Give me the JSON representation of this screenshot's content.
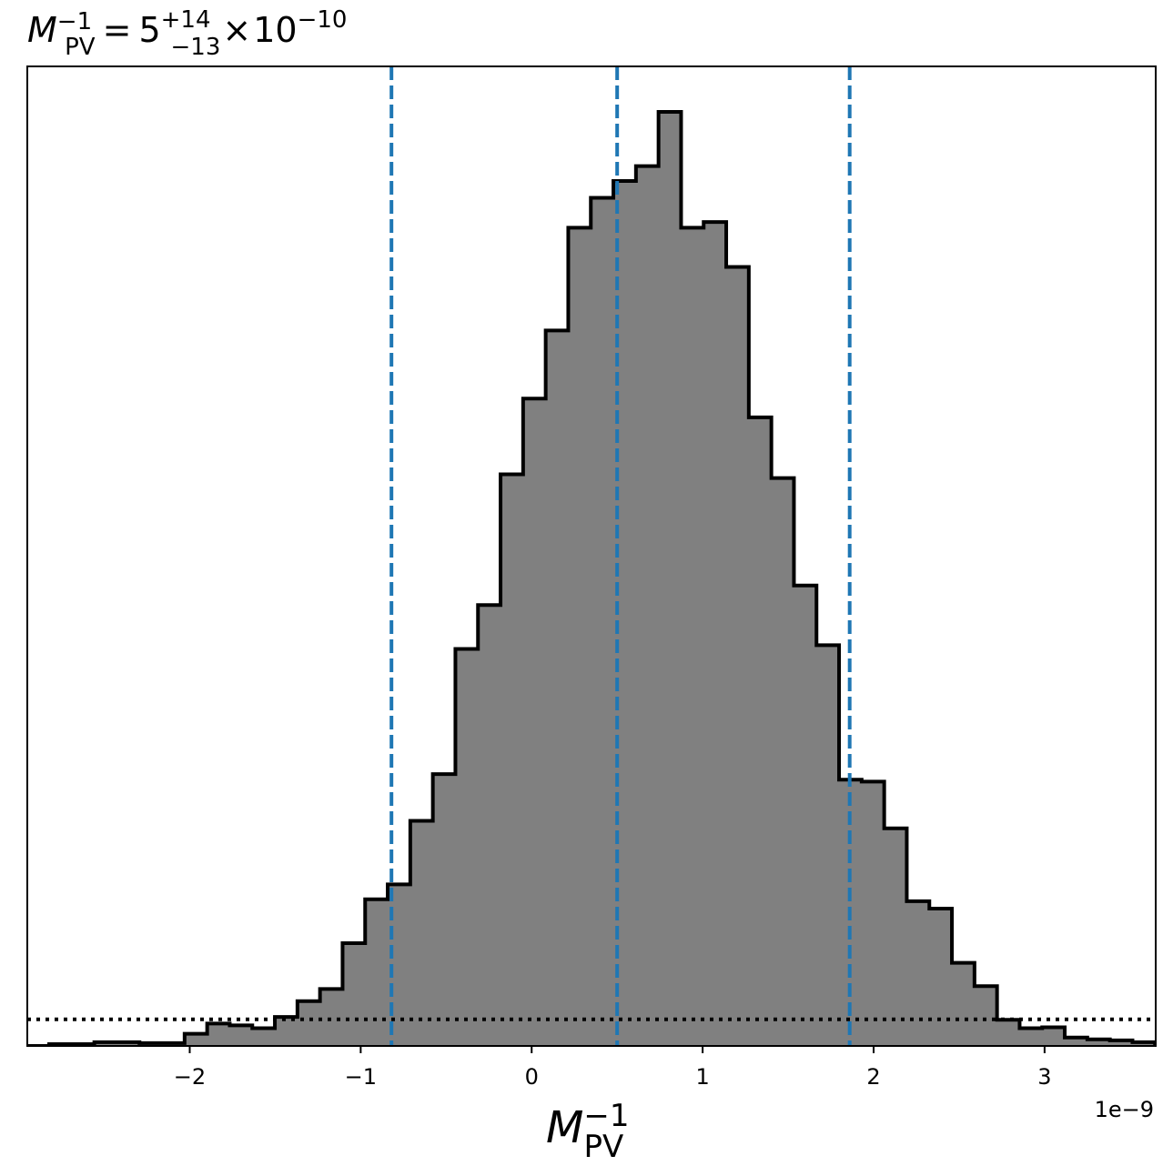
{
  "chart_data": {
    "type": "histogram",
    "title": {
      "symbol": "M",
      "subscript": "PV",
      "superscript": "−1",
      "equals": "=",
      "median": "5",
      "plus_err": "+14",
      "minus_err": "−13",
      "times": "×",
      "base": "10",
      "exponent": "−10"
    },
    "xlabel": {
      "symbol": "M",
      "subscript": "PV",
      "superscript": "−1"
    },
    "x_offset_label": "1e−9",
    "xlim": [
      -2.95,
      3.65
    ],
    "ylim": [
      0,
      1.0
    ],
    "xticks": [
      -2,
      -1,
      0,
      1,
      2,
      3
    ],
    "xtick_labels": [
      "−2",
      "−1",
      "0",
      "1",
      "2",
      "3"
    ],
    "bin_edges": [
      -2.954,
      -2.822,
      -2.69,
      -2.558,
      -2.426,
      -2.294,
      -2.162,
      -2.03,
      -1.898,
      -1.766,
      -1.634,
      -1.502,
      -1.37,
      -1.238,
      -1.106,
      -0.974,
      -0.842,
      -0.71,
      -0.578,
      -0.446,
      -0.314,
      -0.182,
      -0.05,
      0.082,
      0.214,
      0.346,
      0.478,
      0.61,
      0.742,
      0.874,
      1.006,
      1.138,
      1.27,
      1.402,
      1.534,
      1.666,
      1.798,
      1.93,
      2.062,
      2.194,
      2.326,
      2.458,
      2.59,
      2.722,
      2.854,
      2.986,
      3.118,
      3.25,
      3.382,
      3.514,
      3.646
    ],
    "counts": [
      0.0,
      0.002,
      0.002,
      0.004,
      0.004,
      0.003,
      0.003,
      0.013,
      0.024,
      0.022,
      0.019,
      0.031,
      0.048,
      0.061,
      0.11,
      0.157,
      0.173,
      0.241,
      0.291,
      0.425,
      0.472,
      0.612,
      0.693,
      0.766,
      0.876,
      0.908,
      0.926,
      0.942,
      1.0,
      0.876,
      0.882,
      0.834,
      0.673,
      0.608,
      0.493,
      0.429,
      0.285,
      0.283,
      0.233,
      0.155,
      0.147,
      0.089,
      0.064,
      0.028,
      0.019,
      0.02,
      0.009,
      0.007,
      0.006,
      0.004
    ],
    "hist_color": "#808080",
    "hist_edge_color": "#000000",
    "quantile_lines": [
      -0.82,
      0.5,
      1.86
    ],
    "quantile_color": "#1f77b4",
    "dotted_hline": 0.0285,
    "dotted_color": "#000000",
    "grid": false,
    "legend": "none"
  }
}
